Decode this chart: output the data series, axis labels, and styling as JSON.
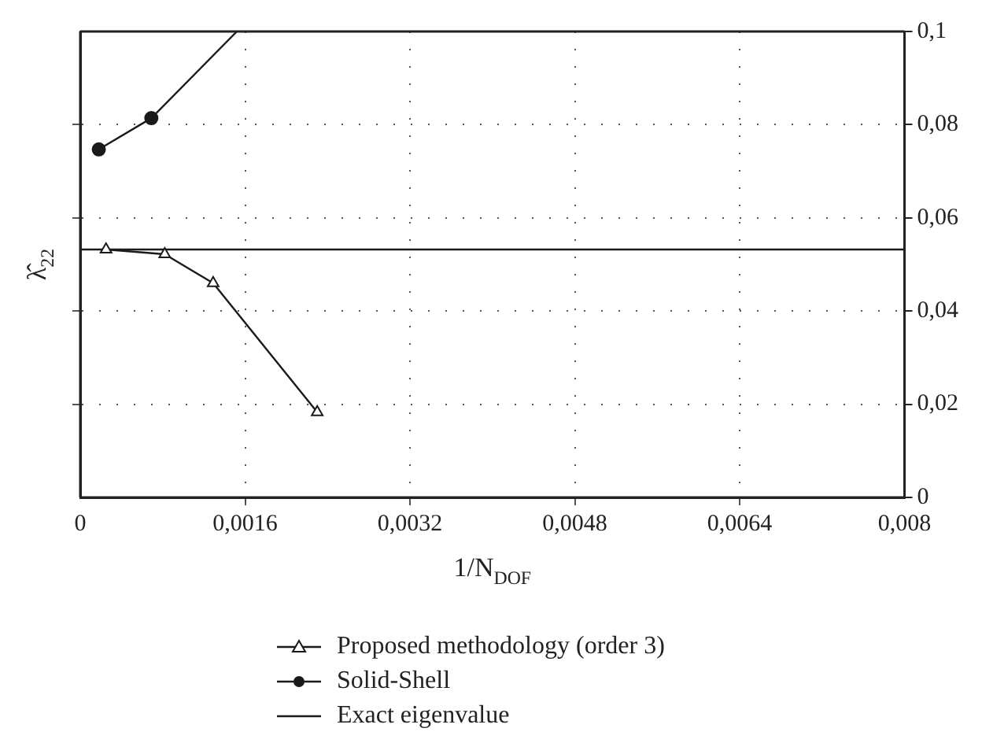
{
  "chart_data": {
    "type": "line",
    "xlabel": "1/N$_{DOF}$",
    "ylabel": "λ̂$_{22}$",
    "xlim": [
      0,
      0.008
    ],
    "xticks": [
      {
        "value": 0,
        "label": "0"
      },
      {
        "value": 0.0016,
        "label": "0,0016"
      },
      {
        "value": 0.0032,
        "label": "0,0032"
      },
      {
        "value": 0.0048,
        "label": "0,0048"
      },
      {
        "value": 0.0064,
        "label": "0,0064"
      },
      {
        "value": 0.008,
        "label": "0,008"
      }
    ],
    "ylim": [
      0,
      0.1
    ],
    "yticks": [
      {
        "value": 0,
        "label": "0"
      },
      {
        "value": 0.02,
        "label": "0,02"
      },
      {
        "value": 0.04,
        "label": "0,04"
      },
      {
        "value": 0.06,
        "label": "0,06"
      },
      {
        "value": 0.08,
        "label": "0,08"
      },
      {
        "value": 0.1,
        "label": "0,1"
      }
    ],
    "grid": true,
    "legend": "bottom",
    "line_style": "solid",
    "series": [
      {
        "name": "Proposed methodology (order 3)",
        "color": "#1a1a1a",
        "marker": "triangle",
        "x": [
          0.00025,
          0.00082,
          0.00129,
          0.0023
        ],
        "values": [
          0.0532,
          0.0522,
          0.046,
          0.0183
        ]
      },
      {
        "name": "Solid-Shell",
        "color": "#1a1a1a",
        "marker": "circle",
        "x": [
          0.00018,
          0.00069,
          0.00152
        ],
        "values": [
          0.0747,
          0.0814,
          0.1
        ]
      },
      {
        "name": "Exact eigenvalue",
        "color": "#1a1a1a",
        "marker": "none",
        "x": [
          0,
          0.008
        ],
        "values": [
          0.0532,
          0.0532
        ]
      }
    ]
  }
}
